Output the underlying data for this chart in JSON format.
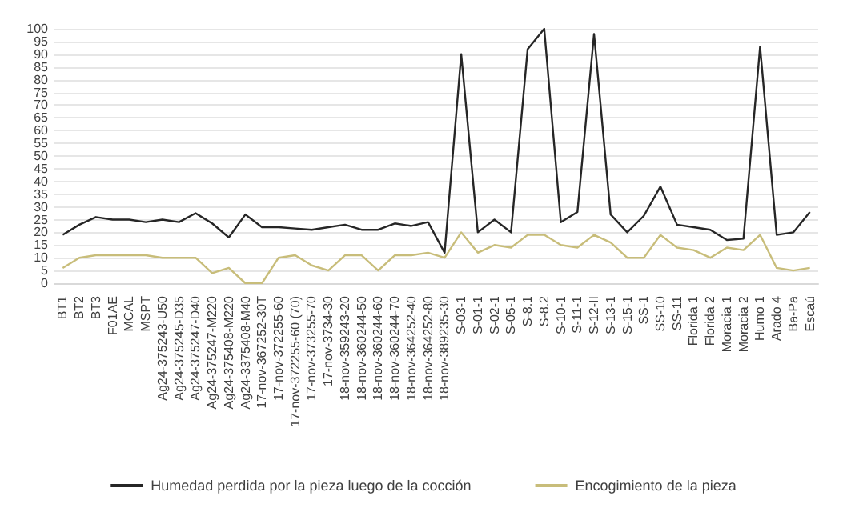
{
  "chart_data": {
    "type": "line",
    "categories": [
      "BT1",
      "BT2",
      "BT3",
      "F01AE",
      "MCAL",
      "MSPT",
      "Ag24-375243-U50",
      "Ag24-375245-D35",
      "Ag24-375247-D40",
      "Ag24-375247-M220",
      "Ag24-375408-M220",
      "Ag24-3375408-M40",
      "17-nov-367252-30T",
      "17-nov-372255-60",
      "17-nov-372255-60 (70)",
      "17-nov-373255-70",
      "17-nov-3734-30",
      "18-nov-359243-20",
      "18-nov-360244-50",
      "18-nov-360244-60",
      "18-nov-360244-70",
      "18-nov-364252-40",
      "18-nov-364252-80",
      "18-nov-389235-30",
      "S-03-1",
      "S-01-1",
      "S-02-1",
      "S-05-1",
      "S-8.1",
      "S-8.2",
      "S-10-1",
      "S-11-1",
      "S-12-II",
      "S-13-1",
      "S-15-1",
      "SS-1",
      "SS-10",
      "SS-11",
      "Florida 1",
      "Florida 2",
      "Moracia 1",
      "Moracia 2",
      "Humo 1",
      "Arado 4",
      "Ba-Pa",
      "Escaú"
    ],
    "series": [
      {
        "name": "Humedad perdida por la pieza luego de la cocción",
        "color": "#262626",
        "values": [
          19,
          23,
          26,
          25,
          25,
          24,
          25,
          24,
          27.5,
          23.5,
          18,
          27,
          22,
          22,
          21.5,
          21,
          22,
          23,
          21,
          21,
          23.5,
          22.5,
          24,
          12,
          90,
          20,
          25,
          20,
          92,
          100,
          24,
          28,
          98,
          27,
          20,
          26.5,
          38,
          23,
          22,
          21,
          17,
          17.5,
          93,
          19,
          20,
          28
        ]
      },
      {
        "name": "Encogimiento de la pieza",
        "color": "#c8bd7a",
        "values": [
          6,
          10,
          11,
          11,
          11,
          11,
          10,
          10,
          10,
          4,
          6,
          0,
          0,
          10,
          11,
          7,
          5,
          11,
          11,
          5,
          11,
          11,
          12,
          10,
          20,
          12,
          15,
          14,
          19,
          19,
          15,
          14,
          19,
          16,
          10,
          10,
          19,
          14,
          13,
          10,
          14,
          13,
          19,
          6,
          5,
          6
        ]
      }
    ],
    "ylim": [
      0,
      100
    ],
    "yticks": [
      0,
      5,
      10,
      15,
      20,
      25,
      30,
      35,
      40,
      45,
      50,
      55,
      60,
      65,
      70,
      75,
      80,
      85,
      90,
      95,
      100
    ],
    "grid": "y",
    "legend": "bottom",
    "marker": "none",
    "line_style": "solid"
  }
}
